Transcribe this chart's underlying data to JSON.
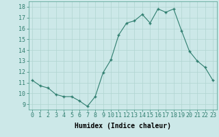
{
  "x": [
    0,
    1,
    2,
    3,
    4,
    5,
    6,
    7,
    8,
    9,
    10,
    11,
    12,
    13,
    14,
    15,
    16,
    17,
    18,
    19,
    20,
    21,
    22,
    23
  ],
  "y": [
    11.2,
    10.7,
    10.5,
    9.9,
    9.7,
    9.7,
    9.3,
    8.8,
    9.7,
    11.9,
    13.1,
    15.4,
    16.5,
    16.7,
    17.3,
    16.5,
    17.8,
    17.5,
    17.8,
    15.8,
    13.9,
    13.0,
    12.4,
    11.2
  ],
  "line_color": "#2e7d6e",
  "bg_color": "#cce8e8",
  "grid_color": "#b0d4d0",
  "xlabel": "Humidex (Indice chaleur)",
  "ylim": [
    8.5,
    18.5
  ],
  "yticks": [
    9,
    10,
    11,
    12,
    13,
    14,
    15,
    16,
    17,
    18
  ],
  "xticks": [
    0,
    1,
    2,
    3,
    4,
    5,
    6,
    7,
    8,
    9,
    10,
    11,
    12,
    13,
    14,
    15,
    16,
    17,
    18,
    19,
    20,
    21,
    22,
    23
  ],
  "tick_fontsize": 6,
  "xlabel_fontsize": 7
}
